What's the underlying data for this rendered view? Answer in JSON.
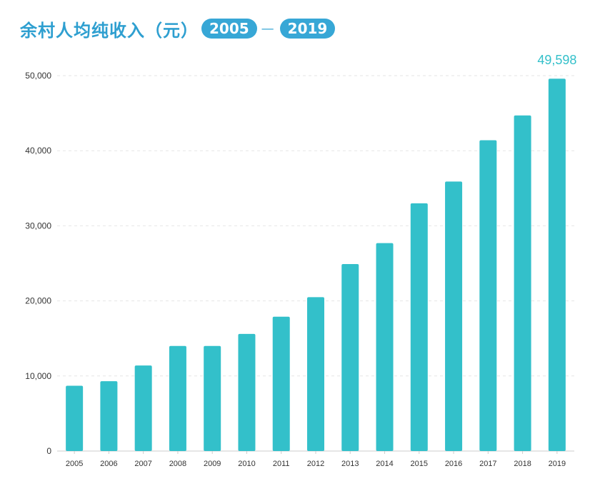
{
  "header": {
    "title": "余村人均纯收入（元）",
    "start_year": "2005",
    "dash": "—",
    "end_year": "2019"
  },
  "colors": {
    "bar": "#33c0ca",
    "title": "#2e9fd0",
    "pill": "#37a7d6",
    "grid": "#e6e6e6",
    "axis": "#cccccc",
    "label": "#33c0ca"
  },
  "chart_data": {
    "type": "bar",
    "title": "余村人均纯收入（元）",
    "xlabel": "",
    "ylabel": "",
    "categories": [
      "2005",
      "2006",
      "2007",
      "2008",
      "2009",
      "2010",
      "2011",
      "2012",
      "2013",
      "2014",
      "2015",
      "2016",
      "2017",
      "2018",
      "2019"
    ],
    "values": [
      8700,
      9300,
      11400,
      14000,
      14000,
      15600,
      17900,
      20500,
      24900,
      27700,
      33000,
      35900,
      41400,
      44700,
      49598
    ],
    "ylim": [
      0,
      50000
    ],
    "yticks": [
      0,
      10000,
      20000,
      30000,
      40000,
      50000
    ],
    "ytick_labels": [
      "0",
      "10,000",
      "20,000",
      "30,000",
      "40,000",
      "50,000"
    ],
    "grid": true,
    "data_labels": [
      {
        "category": "2019",
        "text": "49,598"
      }
    ]
  }
}
